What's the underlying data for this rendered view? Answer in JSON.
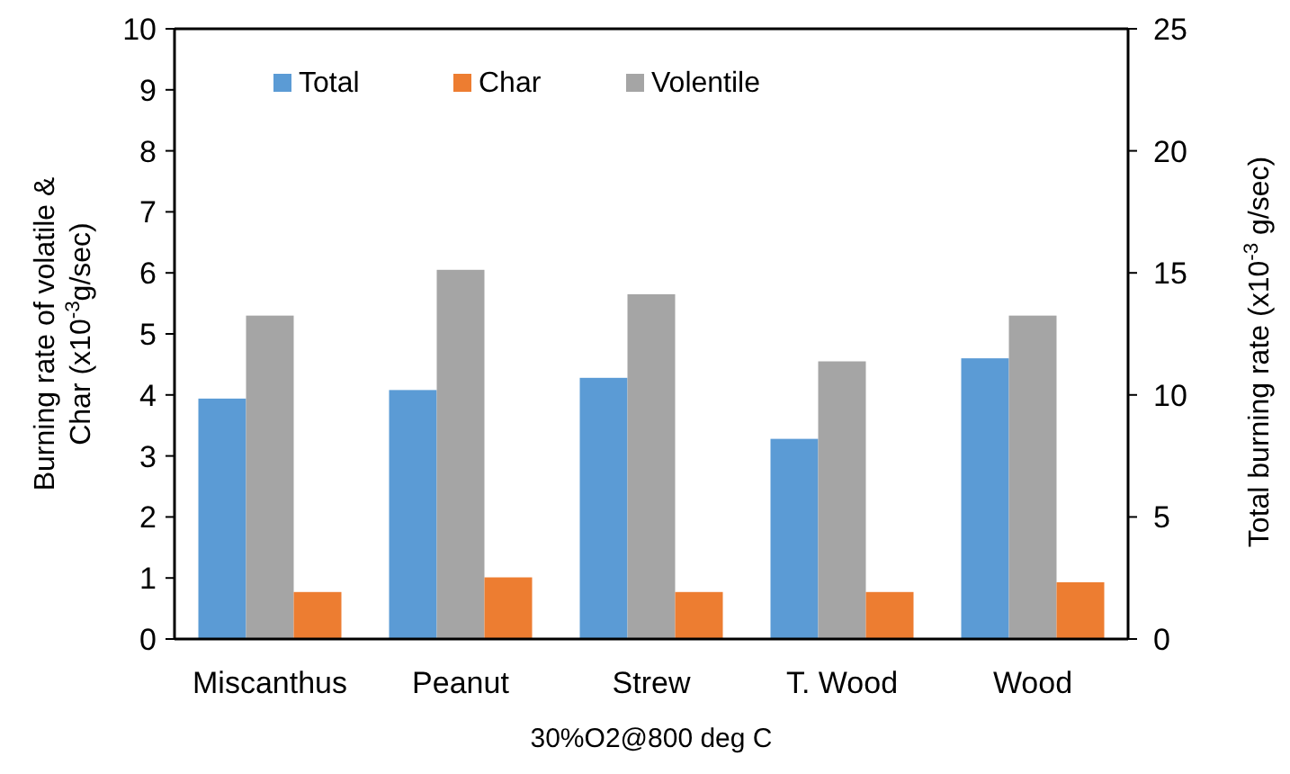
{
  "chart_data": {
    "type": "bar",
    "xlabel": "30%O2@800 deg C",
    "ylabel": "Burning rate of volatile &\nChar (x10$^{-3}$g/sec)",
    "y2label": "Total burning rate (x10$^{-3}$ g/sec)",
    "categories": [
      "Miscanthus",
      "Peanut",
      "Strew",
      "T. Wood",
      "Wood"
    ],
    "series": [
      {
        "name": "Total",
        "color": "#5b9bd5",
        "axis": "y2",
        "values": [
          9.85,
          10.2,
          10.7,
          8.2,
          11.5
        ]
      },
      {
        "name": "Char",
        "color": "#ed7d31",
        "values": [
          0.77,
          1.01,
          0.77,
          0.77,
          0.93
        ]
      },
      {
        "name": "Volentile",
        "color": "#a5a5a5",
        "values": [
          5.3,
          6.05,
          5.65,
          4.55,
          5.3
        ]
      }
    ],
    "ylim": [
      0,
      10
    ],
    "yticks": [
      0,
      1,
      2,
      3,
      4,
      5,
      6,
      7,
      8,
      9,
      10
    ],
    "y2lim": [
      0,
      25
    ],
    "y2ticks": [
      0,
      5,
      10,
      15,
      20,
      25
    ],
    "legend": "top left",
    "grid": false
  }
}
